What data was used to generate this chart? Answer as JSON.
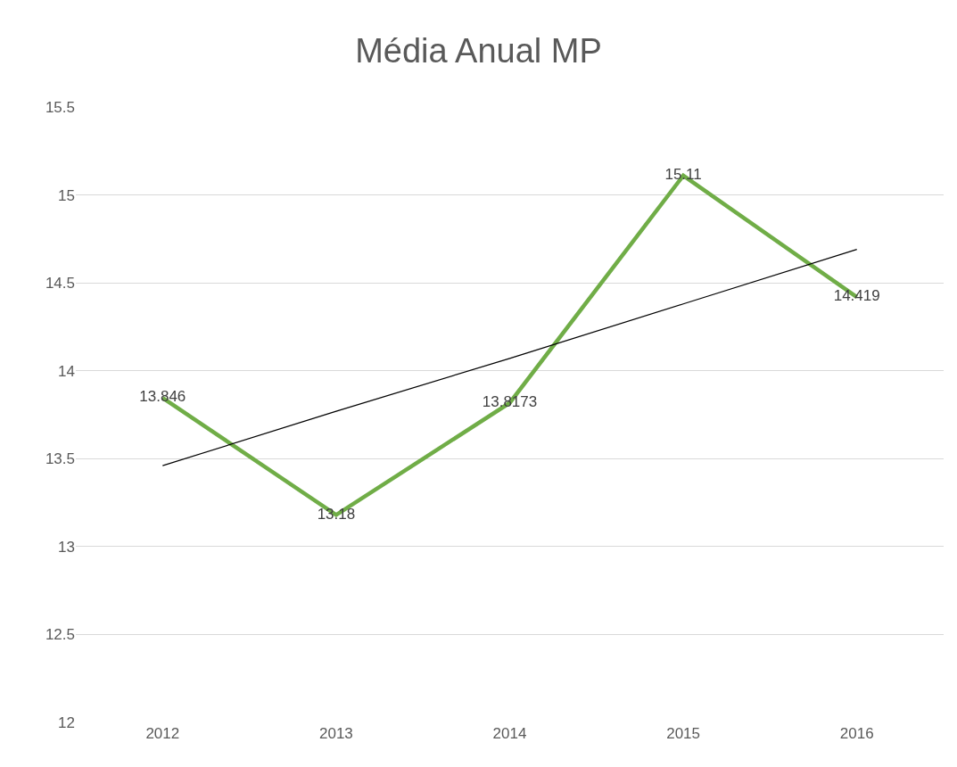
{
  "chart_data": {
    "type": "line",
    "title": "Média Anual MP",
    "categories": [
      "2012",
      "2013",
      "2014",
      "2015",
      "2016"
    ],
    "series": [
      {
        "color": "#70ad47",
        "values": [
          13.846,
          13.18,
          13.8173,
          15.11,
          14.419
        ],
        "value_labels": [
          "13.846",
          "13.18",
          "13.8173",
          "15.11",
          "14.419"
        ]
      },
      {
        "type": "line",
        "color": "#000000",
        "values": [
          13.46,
          13.77,
          14.07,
          14.38,
          14.69
        ]
      }
    ],
    "ylim": [
      12,
      15.5
    ],
    "yticks": [
      12,
      12.5,
      13,
      13.5,
      14,
      14.5,
      15,
      15.5
    ],
    "grid": "y",
    "marker": "none",
    "line_style": "solid"
  }
}
